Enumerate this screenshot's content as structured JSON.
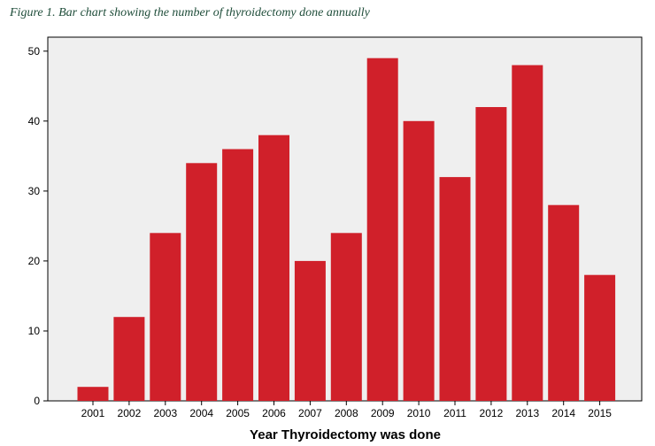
{
  "caption": "Figure 1. Bar chart showing the number of thyroidectomy done annually",
  "chart_data": {
    "type": "bar",
    "title": "",
    "xlabel": "Year Thyroidectomy was done",
    "ylabel": "",
    "categories": [
      "2001",
      "2002",
      "2003",
      "2004",
      "2005",
      "2006",
      "2007",
      "2008",
      "2009",
      "2010",
      "2011",
      "2012",
      "2013",
      "2014",
      "2015"
    ],
    "values": [
      2,
      12,
      24,
      34,
      36,
      38,
      20,
      24,
      49,
      40,
      32,
      42,
      48,
      28,
      18
    ],
    "ylim": [
      0,
      52
    ],
    "yticks": [
      0,
      10,
      20,
      30,
      40,
      50
    ],
    "grid": false,
    "legend": "none",
    "bar_color": "#d0202a",
    "plot_background": "#efefef"
  }
}
